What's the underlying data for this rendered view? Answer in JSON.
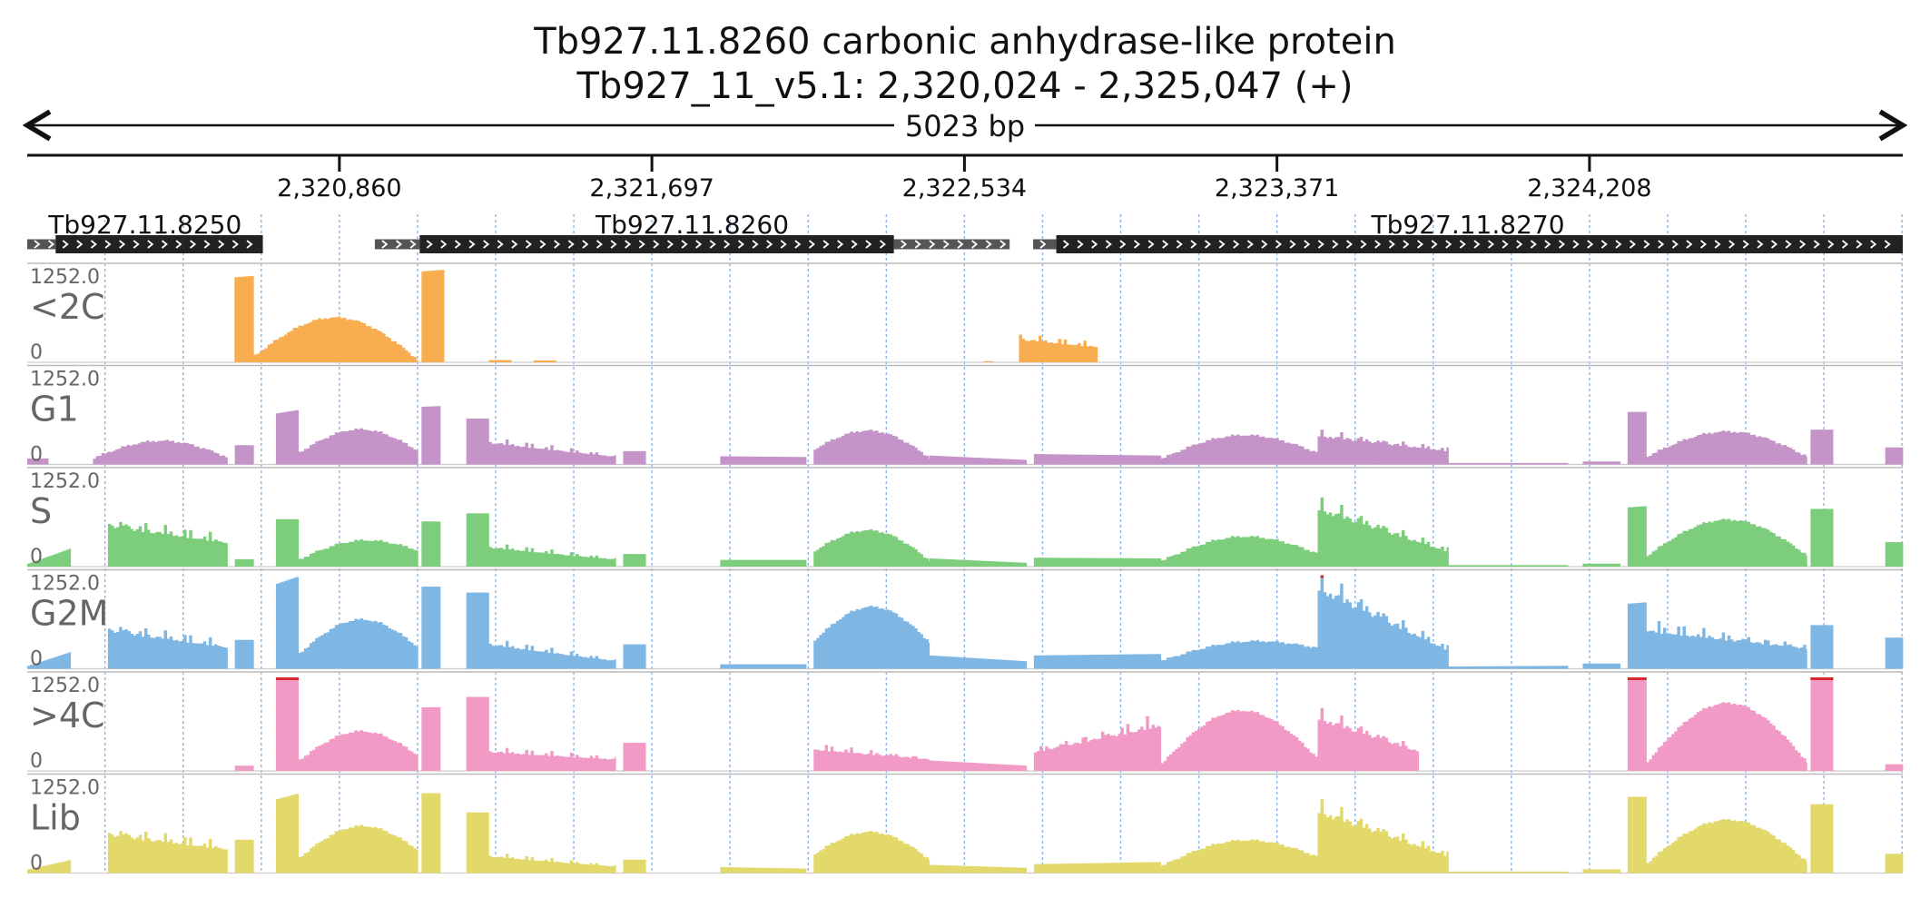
{
  "title_line1": "Tb927.11.8260  carbonic anhydrase-like protein",
  "title_line2": "Tb927_11_v5.1: 2,320,024 - 2,325,047 (+)",
  "span_label": "5023 bp",
  "colors": {
    "axis": "#111111",
    "gridline": "#8ab4e6",
    "separator": "#bbbbbb",
    "gene_body": "#222222",
    "utr": "#555555",
    "overflow": "#d62728",
    "tracks": {
      "<2C": "#f7ad50",
      "G1": "#c493c8",
      "S": "#7ccd7c",
      "G2M": "#7eb6e4",
      ">4C": "#f29ac6",
      "Lib": "#e3d96a"
    }
  },
  "chart_data": {
    "type": "area",
    "region": {
      "chrom": "Tb927_11_v5.1",
      "start": 2320024,
      "end": 2325047,
      "strand": "+"
    },
    "x_ticks": [
      {
        "pos": 2320860,
        "label": "2,320,860"
      },
      {
        "pos": 2321697,
        "label": "2,321,697"
      },
      {
        "pos": 2322534,
        "label": "2,322,534"
      },
      {
        "pos": 2323371,
        "label": "2,323,371"
      },
      {
        "pos": 2324208,
        "label": "2,324,208"
      }
    ],
    "genes": [
      {
        "name": "Tb927.11.8250",
        "utr5": [
          2320024,
          2320100
        ],
        "cds": [
          2320100,
          2320655
        ],
        "utr3": null
      },
      {
        "name": "Tb927.11.8260",
        "utr5": [
          2320955,
          2321075
        ],
        "cds": [
          2321075,
          2322345
        ],
        "utr3": [
          2322345,
          2322655
        ]
      },
      {
        "name": "Tb927.11.8270",
        "utr5": [
          2322718,
          2322780
        ],
        "cds": [
          2322780,
          2325047
        ],
        "utr3": null
      }
    ],
    "y_range": [
      0,
      1252.0
    ],
    "y_max_label": "1252.0",
    "y_min_label": "0",
    "tracks": [
      {
        "name": "<2C",
        "segments": [
          {
            "x0": 2320579,
            "x1": 2320630,
            "shape": "flat",
            "h0": 1150,
            "h1": 1170
          },
          {
            "x0": 2320630,
            "x1": 2321070,
            "shape": "hump",
            "base": 180,
            "peak": 640,
            "end": 40
          },
          {
            "x0": 2321080,
            "x1": 2321140,
            "shape": "flat",
            "h0": 1230,
            "h1": 1252
          },
          {
            "x0": 2321260,
            "x1": 2321320,
            "shape": "flat",
            "h0": 30,
            "h1": 30
          },
          {
            "x0": 2321380,
            "x1": 2321440,
            "shape": "flat",
            "h0": 25,
            "h1": 25
          },
          {
            "x0": 2322585,
            "x1": 2322610,
            "shape": "flat",
            "h0": 15,
            "h1": 15
          },
          {
            "x0": 2322680,
            "x1": 2322890,
            "shape": "jag",
            "h0": 360,
            "h1": 240
          }
        ]
      },
      {
        "name": "G1",
        "segments": [
          {
            "x0": 2320024,
            "x1": 2320080,
            "shape": "flat",
            "h0": 80,
            "h1": 80
          },
          {
            "x0": 2320200,
            "x1": 2320560,
            "shape": "hump",
            "base": 180,
            "peak": 320,
            "end": 180
          },
          {
            "x0": 2320580,
            "x1": 2320630,
            "shape": "flat",
            "h0": 260,
            "h1": 260
          },
          {
            "x0": 2320690,
            "x1": 2320750,
            "shape": "flat",
            "h0": 690,
            "h1": 740
          },
          {
            "x0": 2320750,
            "x1": 2321070,
            "shape": "hump",
            "base": 330,
            "peak": 480,
            "end": 350
          },
          {
            "x0": 2321080,
            "x1": 2321130,
            "shape": "flat",
            "h0": 780,
            "h1": 790
          },
          {
            "x0": 2321200,
            "x1": 2321260,
            "shape": "flat",
            "h0": 620,
            "h1": 620
          },
          {
            "x0": 2321260,
            "x1": 2321600,
            "shape": "jag",
            "h0": 340,
            "h1": 120
          },
          {
            "x0": 2321620,
            "x1": 2321680,
            "shape": "flat",
            "h0": 180,
            "h1": 180
          },
          {
            "x0": 2321880,
            "x1": 2322110,
            "shape": "flat",
            "h0": 110,
            "h1": 100
          },
          {
            "x0": 2322130,
            "x1": 2322440,
            "shape": "hump",
            "base": 420,
            "peak": 520,
            "end": 160
          },
          {
            "x0": 2322440,
            "x1": 2322700,
            "shape": "flat",
            "h0": 120,
            "h1": 60
          },
          {
            "x0": 2322720,
            "x1": 2323060,
            "shape": "flat",
            "h0": 140,
            "h1": 120
          },
          {
            "x0": 2323060,
            "x1": 2323480,
            "shape": "hump",
            "base": 160,
            "peak": 430,
            "end": 300
          },
          {
            "x0": 2323480,
            "x1": 2323830,
            "shape": "jag",
            "h0": 450,
            "h1": 210
          },
          {
            "x0": 2323830,
            "x1": 2324150,
            "shape": "flat",
            "h0": 20,
            "h1": 20
          },
          {
            "x0": 2324190,
            "x1": 2324290,
            "shape": "flat",
            "h0": 40,
            "h1": 40
          },
          {
            "x0": 2324310,
            "x1": 2324360,
            "shape": "flat",
            "h0": 710,
            "h1": 710
          },
          {
            "x0": 2324360,
            "x1": 2324790,
            "shape": "hump",
            "base": 220,
            "peak": 450,
            "end": 200
          },
          {
            "x0": 2324800,
            "x1": 2324860,
            "shape": "flat",
            "h0": 470,
            "h1": 470
          },
          {
            "x0": 2325000,
            "x1": 2325047,
            "shape": "flat",
            "h0": 230,
            "h1": 230
          }
        ]
      },
      {
        "name": "S",
        "segments": [
          {
            "x0": 2320024,
            "x1": 2320140,
            "shape": "flat",
            "h0": 40,
            "h1": 250
          },
          {
            "x0": 2320240,
            "x1": 2320560,
            "shape": "jag",
            "h0": 640,
            "h1": 380
          },
          {
            "x0": 2320580,
            "x1": 2320630,
            "shape": "flat",
            "h0": 100,
            "h1": 100
          },
          {
            "x0": 2320690,
            "x1": 2320750,
            "shape": "flat",
            "h0": 640,
            "h1": 640
          },
          {
            "x0": 2320750,
            "x1": 2321070,
            "shape": "hump",
            "base": 200,
            "peak": 410,
            "end": 430
          },
          {
            "x0": 2321080,
            "x1": 2321130,
            "shape": "flat",
            "h0": 610,
            "h1": 610
          },
          {
            "x0": 2321200,
            "x1": 2321260,
            "shape": "flat",
            "h0": 720,
            "h1": 720
          },
          {
            "x0": 2321260,
            "x1": 2321600,
            "shape": "jag",
            "h0": 300,
            "h1": 110
          },
          {
            "x0": 2321620,
            "x1": 2321680,
            "shape": "flat",
            "h0": 170,
            "h1": 170
          },
          {
            "x0": 2321880,
            "x1": 2322110,
            "shape": "flat",
            "h0": 90,
            "h1": 90
          },
          {
            "x0": 2322130,
            "x1": 2322440,
            "shape": "hump",
            "base": 430,
            "peak": 560,
            "end": 140
          },
          {
            "x0": 2322440,
            "x1": 2322700,
            "shape": "flat",
            "h0": 110,
            "h1": 50
          },
          {
            "x0": 2322720,
            "x1": 2323060,
            "shape": "flat",
            "h0": 120,
            "h1": 110
          },
          {
            "x0": 2323060,
            "x1": 2323480,
            "shape": "hump",
            "base": 160,
            "peak": 450,
            "end": 340
          },
          {
            "x0": 2323480,
            "x1": 2323830,
            "shape": "jag",
            "h0": 900,
            "h1": 230
          },
          {
            "x0": 2323830,
            "x1": 2324150,
            "shape": "flat",
            "h0": 20,
            "h1": 20
          },
          {
            "x0": 2324190,
            "x1": 2324290,
            "shape": "flat",
            "h0": 40,
            "h1": 40
          },
          {
            "x0": 2324310,
            "x1": 2324360,
            "shape": "flat",
            "h0": 800,
            "h1": 820
          },
          {
            "x0": 2324360,
            "x1": 2324790,
            "shape": "hump",
            "base": 300,
            "peak": 640,
            "end": 280
          },
          {
            "x0": 2324800,
            "x1": 2324860,
            "shape": "flat",
            "h0": 780,
            "h1": 780
          },
          {
            "x0": 2325000,
            "x1": 2325047,
            "shape": "flat",
            "h0": 330,
            "h1": 330
          }
        ]
      },
      {
        "name": "G2M",
        "segments": [
          {
            "x0": 2320024,
            "x1": 2320140,
            "shape": "flat",
            "h0": 40,
            "h1": 230
          },
          {
            "x0": 2320240,
            "x1": 2320560,
            "shape": "jag",
            "h0": 600,
            "h1": 340
          },
          {
            "x0": 2320580,
            "x1": 2320630,
            "shape": "flat",
            "h0": 390,
            "h1": 390
          },
          {
            "x0": 2320690,
            "x1": 2320750,
            "shape": "flat",
            "h0": 1150,
            "h1": 1252
          },
          {
            "x0": 2320750,
            "x1": 2321070,
            "shape": "hump",
            "base": 420,
            "peak": 700,
            "end": 560
          },
          {
            "x0": 2321080,
            "x1": 2321130,
            "shape": "flat",
            "h0": 1110,
            "h1": 1110
          },
          {
            "x0": 2321200,
            "x1": 2321260,
            "shape": "flat",
            "h0": 1030,
            "h1": 1030
          },
          {
            "x0": 2321260,
            "x1": 2321600,
            "shape": "jag",
            "h0": 380,
            "h1": 120
          },
          {
            "x0": 2321620,
            "x1": 2321680,
            "shape": "flat",
            "h0": 330,
            "h1": 330
          },
          {
            "x0": 2321880,
            "x1": 2322110,
            "shape": "flat",
            "h0": 60,
            "h1": 60
          },
          {
            "x0": 2322130,
            "x1": 2322440,
            "shape": "hump",
            "base": 780,
            "peak": 860,
            "end": 690
          },
          {
            "x0": 2322440,
            "x1": 2322700,
            "shape": "flat",
            "h0": 180,
            "h1": 100
          },
          {
            "x0": 2322720,
            "x1": 2323060,
            "shape": "flat",
            "h0": 180,
            "h1": 200
          },
          {
            "x0": 2323060,
            "x1": 2323480,
            "shape": "hump",
            "base": 220,
            "peak": 450,
            "end": 560
          },
          {
            "x0": 2323480,
            "x1": 2323830,
            "shape": "jag",
            "h0": 1252,
            "h1": 280
          },
          {
            "x0": 2323830,
            "x1": 2324150,
            "shape": "flat",
            "h0": 30,
            "h1": 40
          },
          {
            "x0": 2324190,
            "x1": 2324290,
            "shape": "flat",
            "h0": 70,
            "h1": 70
          },
          {
            "x0": 2324310,
            "x1": 2324360,
            "shape": "flat",
            "h0": 880,
            "h1": 900
          },
          {
            "x0": 2324360,
            "x1": 2324790,
            "shape": "jag",
            "h0": 600,
            "h1": 320
          },
          {
            "x0": 2324800,
            "x1": 2324860,
            "shape": "flat",
            "h0": 590,
            "h1": 590
          },
          {
            "x0": 2325000,
            "x1": 2325047,
            "shape": "flat",
            "h0": 420,
            "h1": 420
          }
        ]
      },
      {
        "name": ">4C",
        "segments": [
          {
            "x0": 2320580,
            "x1": 2320630,
            "shape": "flat",
            "h0": 70,
            "h1": 70
          },
          {
            "x0": 2320690,
            "x1": 2320750,
            "shape": "flat",
            "h0": 1252,
            "h1": 1252
          },
          {
            "x0": 2320750,
            "x1": 2321070,
            "shape": "hump",
            "base": 300,
            "peak": 560,
            "end": 400
          },
          {
            "x0": 2321080,
            "x1": 2321130,
            "shape": "flat",
            "h0": 860,
            "h1": 860
          },
          {
            "x0": 2321200,
            "x1": 2321260,
            "shape": "flat",
            "h0": 1000,
            "h1": 1000
          },
          {
            "x0": 2321260,
            "x1": 2321600,
            "shape": "jag",
            "h0": 300,
            "h1": 180
          },
          {
            "x0": 2321620,
            "x1": 2321680,
            "shape": "flat",
            "h0": 380,
            "h1": 380
          },
          {
            "x0": 2322130,
            "x1": 2322440,
            "shape": "jag",
            "h0": 340,
            "h1": 180
          },
          {
            "x0": 2322440,
            "x1": 2322700,
            "shape": "flat",
            "h0": 140,
            "h1": 70
          },
          {
            "x0": 2322720,
            "x1": 2323060,
            "shape": "jag",
            "h0": 300,
            "h1": 720
          },
          {
            "x0": 2323060,
            "x1": 2323480,
            "shape": "hump",
            "base": 200,
            "peak": 840,
            "end": 300
          },
          {
            "x0": 2323480,
            "x1": 2323750,
            "shape": "jag",
            "h0": 820,
            "h1": 300
          },
          {
            "x0": 2324310,
            "x1": 2324360,
            "shape": "flat",
            "h0": 1252,
            "h1": 1252
          },
          {
            "x0": 2324360,
            "x1": 2324790,
            "shape": "hump",
            "base": 250,
            "peak": 930,
            "end": 200
          },
          {
            "x0": 2324800,
            "x1": 2324860,
            "shape": "flat",
            "h0": 1252,
            "h1": 1252
          },
          {
            "x0": 2325000,
            "x1": 2325047,
            "shape": "flat",
            "h0": 90,
            "h1": 90
          }
        ]
      },
      {
        "name": "Lib",
        "segments": [
          {
            "x0": 2320024,
            "x1": 2320140,
            "shape": "flat",
            "h0": 50,
            "h1": 180
          },
          {
            "x0": 2320240,
            "x1": 2320560,
            "shape": "jag",
            "h0": 600,
            "h1": 380
          },
          {
            "x0": 2320580,
            "x1": 2320630,
            "shape": "flat",
            "h0": 450,
            "h1": 450
          },
          {
            "x0": 2320690,
            "x1": 2320750,
            "shape": "flat",
            "h0": 1000,
            "h1": 1080
          },
          {
            "x0": 2320750,
            "x1": 2321070,
            "shape": "hump",
            "base": 420,
            "peak": 680,
            "end": 600
          },
          {
            "x0": 2321080,
            "x1": 2321130,
            "shape": "flat",
            "h0": 1080,
            "h1": 1080
          },
          {
            "x0": 2321200,
            "x1": 2321260,
            "shape": "flat",
            "h0": 820,
            "h1": 820
          },
          {
            "x0": 2321260,
            "x1": 2321600,
            "shape": "jag",
            "h0": 260,
            "h1": 100
          },
          {
            "x0": 2321620,
            "x1": 2321680,
            "shape": "flat",
            "h0": 180,
            "h1": 180
          },
          {
            "x0": 2321880,
            "x1": 2322110,
            "shape": "flat",
            "h0": 80,
            "h1": 60
          },
          {
            "x0": 2322130,
            "x1": 2322440,
            "shape": "hump",
            "base": 520,
            "peak": 600,
            "end": 340
          },
          {
            "x0": 2322440,
            "x1": 2322700,
            "shape": "flat",
            "h0": 110,
            "h1": 70
          },
          {
            "x0": 2322720,
            "x1": 2323060,
            "shape": "flat",
            "h0": 120,
            "h1": 150
          },
          {
            "x0": 2323060,
            "x1": 2323480,
            "shape": "hump",
            "base": 200,
            "peak": 500,
            "end": 430
          },
          {
            "x0": 2323480,
            "x1": 2323830,
            "shape": "jag",
            "h0": 960,
            "h1": 260
          },
          {
            "x0": 2323830,
            "x1": 2324150,
            "shape": "flat",
            "h0": 20,
            "h1": 20
          },
          {
            "x0": 2324190,
            "x1": 2324290,
            "shape": "flat",
            "h0": 50,
            "h1": 50
          },
          {
            "x0": 2324310,
            "x1": 2324360,
            "shape": "flat",
            "h0": 1030,
            "h1": 1030
          },
          {
            "x0": 2324360,
            "x1": 2324790,
            "shape": "hump",
            "base": 280,
            "peak": 720,
            "end": 280
          },
          {
            "x0": 2324800,
            "x1": 2324860,
            "shape": "flat",
            "h0": 930,
            "h1": 930
          },
          {
            "x0": 2325000,
            "x1": 2325047,
            "shape": "flat",
            "h0": 260,
            "h1": 260
          }
        ]
      }
    ]
  }
}
